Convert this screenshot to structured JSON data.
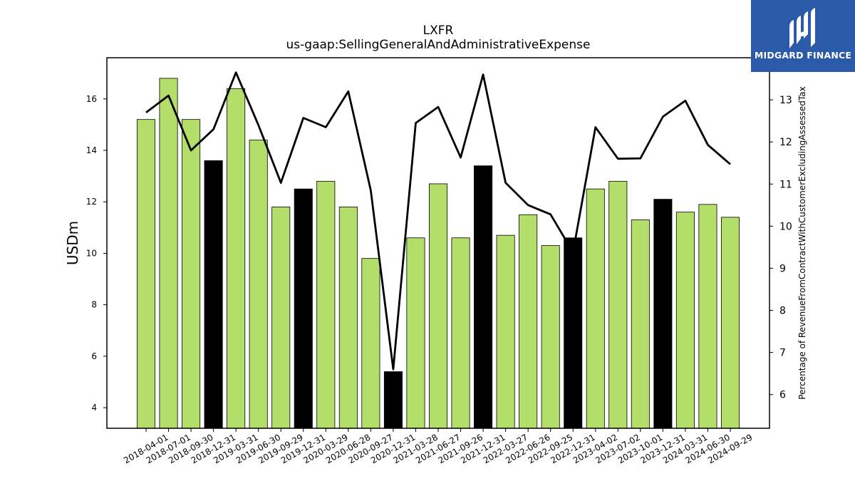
{
  "chart_data": {
    "type": "bar",
    "title": "LXFR",
    "subtitle": "us-gaap:SellingGeneralAndAdministrativeExpense",
    "ylabel": "USDm",
    "y2label": "Percentage of RevenueFromContractWithCustomerExcludingAssessedTax",
    "ylim": [
      3.2,
      17.6
    ],
    "y2lim": [
      5.2,
      14.0
    ],
    "yticks": [
      "4",
      "6",
      "8",
      "10",
      "12",
      "14",
      "16"
    ],
    "y2ticks": [
      "6",
      "7",
      "8",
      "9",
      "10",
      "11",
      "12",
      "13"
    ],
    "categories": [
      "2018-04-01",
      "2018-07-01",
      "2018-09-30",
      "2018-12-31",
      "2019-03-31",
      "2019-06-30",
      "2019-09-29",
      "2019-12-31",
      "2020-03-29",
      "2020-06-28",
      "2020-09-27",
      "2020-12-31",
      "2021-03-28",
      "2021-06-27",
      "2021-09-26",
      "2021-12-31",
      "2022-03-27",
      "2022-06-26",
      "2022-09-25",
      "2022-12-31",
      "2023-04-02",
      "2023-07-02",
      "2023-10-01",
      "2023-12-31",
      "2024-03-31",
      "2024-06-30",
      "2024-09-29"
    ],
    "values": [
      15.2,
      16.8,
      15.2,
      13.6,
      16.4,
      14.4,
      11.8,
      12.5,
      12.8,
      11.8,
      9.8,
      5.4,
      10.6,
      12.7,
      10.6,
      13.4,
      10.7,
      11.5,
      10.3,
      10.6,
      12.5,
      12.8,
      11.3,
      12.1,
      11.6,
      11.9,
      11.4
    ],
    "bar_colors": [
      "#b3de69",
      "#b3de69",
      "#b3de69",
      "#000000",
      "#b3de69",
      "#b3de69",
      "#b3de69",
      "#000000",
      "#b3de69",
      "#b3de69",
      "#b3de69",
      "#000000",
      "#b3de69",
      "#b3de69",
      "#b3de69",
      "#000000",
      "#b3de69",
      "#b3de69",
      "#b3de69",
      "#000000",
      "#b3de69",
      "#b3de69",
      "#b3de69",
      "#000000",
      "#b3de69",
      "#b3de69",
      "#b3de69"
    ],
    "line_values": [
      12.7,
      13.1,
      11.8,
      12.3,
      13.65,
      12.4,
      11.03,
      12.57,
      12.35,
      13.2,
      10.85,
      6.6,
      12.45,
      12.83,
      11.63,
      13.6,
      11.03,
      10.5,
      10.28,
      9.38,
      12.35,
      11.6,
      11.61,
      12.6,
      12.98,
      11.93,
      11.47
    ]
  },
  "colors": {
    "bar_default": "#b3de69",
    "bar_highlight": "#000000",
    "line": "#000000",
    "logo_bg": "#2b5aa8"
  },
  "logo": {
    "text": "MIDGARD FINANCE",
    "icon": "midgard-logo-icon"
  }
}
